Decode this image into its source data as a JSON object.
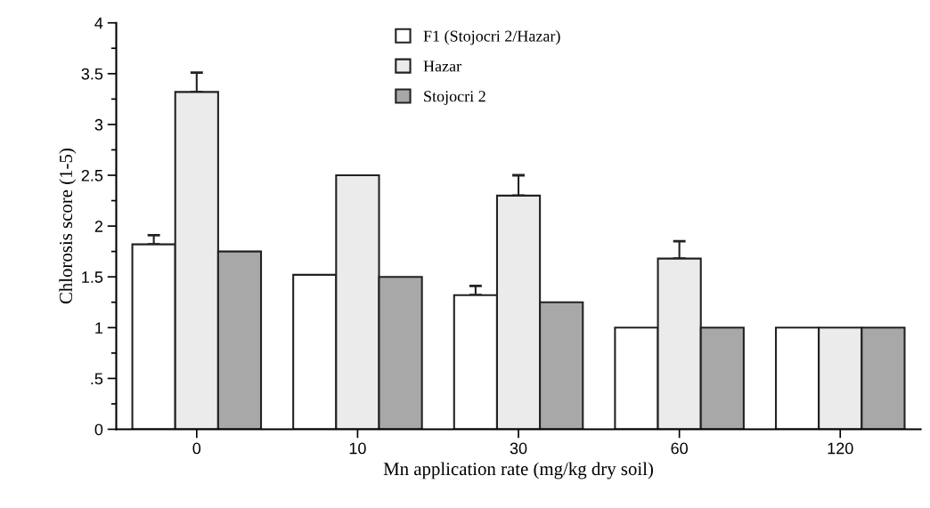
{
  "chart_data": {
    "type": "bar",
    "xlabel": "Mn application rate (mg/kg dry soil)",
    "ylabel": "Chlorosis score (1-5)",
    "categories": [
      "0",
      "10",
      "30",
      "60",
      "120"
    ],
    "series": [
      {
        "name": "F1 (Stojocri 2/Hazar)",
        "color": "#ffffff",
        "values": [
          1.82,
          1.52,
          1.32,
          1.0,
          1.0
        ],
        "errors": [
          [
            1.82,
            1.91
          ],
          null,
          [
            1.32,
            1.41
          ],
          null,
          null
        ]
      },
      {
        "name": "Hazar",
        "color": "#ebebeb",
        "values": [
          3.32,
          2.5,
          2.3,
          1.68,
          1.0
        ],
        "errors": [
          [
            3.32,
            3.51
          ],
          null,
          [
            2.3,
            2.5
          ],
          [
            1.68,
            1.85
          ],
          null
        ]
      },
      {
        "name": "Stojocri 2",
        "color": "#a8a8a8",
        "values": [
          1.75,
          1.5,
          1.25,
          1.0,
          1.0
        ]
      }
    ],
    "ylim": [
      0,
      4
    ],
    "yticks": [
      0,
      {
        "value": 0.5,
        "label": ".5"
      },
      1,
      1.5,
      2,
      2.5,
      3,
      3.5,
      4
    ],
    "legend": "top",
    "grid": false
  }
}
